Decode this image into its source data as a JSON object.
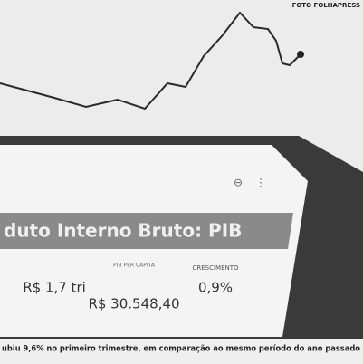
{
  "credit": "FOTO FOLHAPRESS",
  "screen": {
    "title": "duto Interno Bruto: PIB",
    "stats": [
      {
        "label": "PIB PER CAPITA",
        "value": "R$ 30.548,40"
      },
      {
        "label": "CRESCIMENTO",
        "value": "0,9%"
      }
    ],
    "left_value": "R$ 1,7 tri"
  },
  "caption": "ubiu 9,6% no primeiro trimestre, em comparação ao mesmo período do ano passado"
}
